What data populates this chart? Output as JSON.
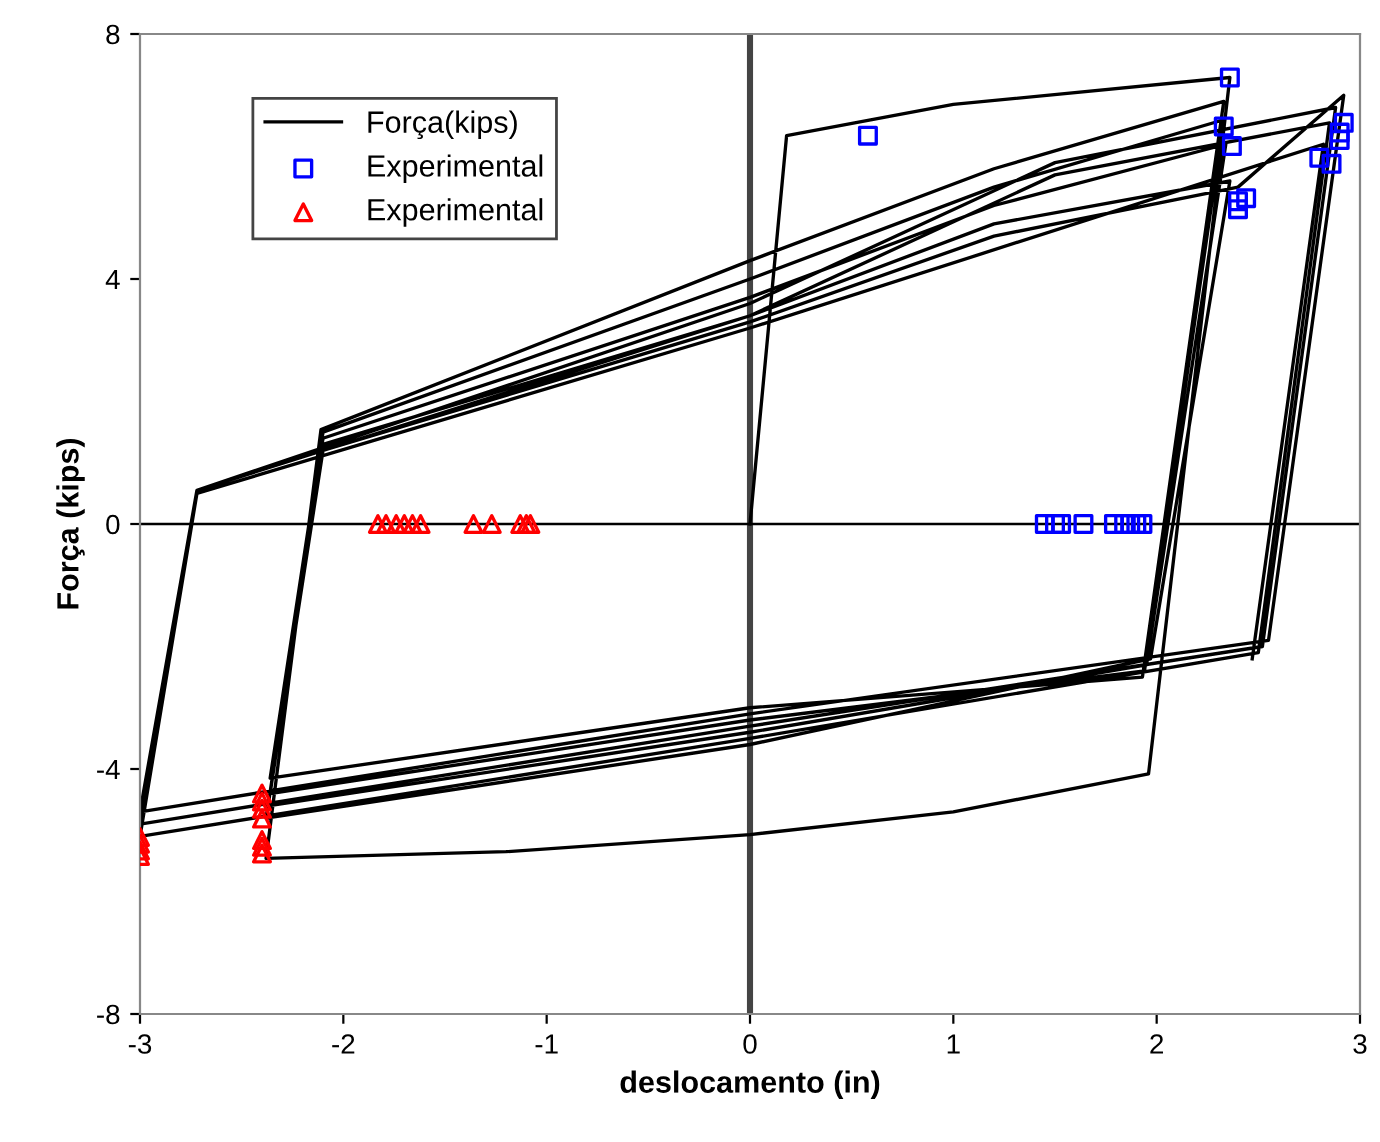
{
  "chart_data": {
    "type": "line",
    "xlabel": "deslocamento (in)",
    "ylabel": "Força (kips)",
    "xlim": [
      -3,
      3
    ],
    "ylim": [
      -8,
      8
    ],
    "xticks": [
      -3,
      -2,
      -1,
      0,
      1,
      2,
      3
    ],
    "yticks": [
      -8,
      -4,
      0,
      4,
      8
    ],
    "grid": false,
    "legend": "top left",
    "ref_lines": [
      {
        "axis": "x",
        "value": 0,
        "color": "#444444"
      },
      {
        "axis": "y",
        "value": 0,
        "color": "#000000"
      }
    ],
    "series": [
      {
        "name": "Força(kips)",
        "type": "line",
        "color": "#000000",
        "marker": "none",
        "line_style": "solid",
        "x": [
          0,
          0.18,
          1.0,
          2.36,
          1.96,
          1.0,
          0,
          -1.2,
          -2.38,
          -2.11,
          0,
          1.2,
          2.33,
          1.93,
          0,
          -2.36,
          -2.1,
          0,
          1.2,
          2.33,
          1.94,
          0,
          -2.36,
          -2.1,
          0,
          1.2,
          2.34,
          1.95,
          0,
          -2.37,
          -2.1,
          0,
          1.2,
          2.36,
          1.97,
          0,
          -2.38,
          -2.1,
          0,
          1.2,
          2.4,
          2.92,
          2.55,
          0,
          -3.0,
          -2.72,
          0,
          1.5,
          2.88,
          2.52,
          0,
          -3.0,
          -2.72,
          0,
          1.5,
          2.85,
          2.5,
          0,
          -3.0,
          -2.72,
          0,
          2.82,
          2.47
        ],
        "values": [
          0,
          6.34,
          6.85,
          7.29,
          -4.08,
          -4.7,
          -5.07,
          -5.35,
          -5.46,
          1.54,
          4.3,
          5.8,
          6.9,
          -2.5,
          -3.0,
          -4.15,
          1.5,
          4.0,
          5.5,
          6.6,
          -2.4,
          -3.2,
          -4.4,
          1.4,
          3.7,
          5.2,
          6.2,
          -2.3,
          -3.4,
          -4.6,
          1.3,
          3.4,
          4.9,
          5.6,
          -2.2,
          -3.6,
          -4.8,
          1.2,
          3.3,
          4.7,
          5.5,
          7.0,
          -1.9,
          -3.1,
          -4.7,
          0.55,
          3.6,
          5.9,
          6.8,
          -2.0,
          -3.3,
          -4.9,
          0.55,
          3.4,
          5.7,
          6.55,
          -2.1,
          -3.5,
          -5.1,
          0.5,
          3.2,
          6.2,
          -2.2
        ]
      },
      {
        "name": "Experimental",
        "type": "scatter",
        "color": "#0000ff",
        "marker": "square",
        "x": [
          0.58,
          2.36,
          2.33,
          2.37,
          2.44,
          2.4,
          2.4,
          2.92,
          2.9,
          2.9,
          2.8,
          2.86,
          1.45,
          1.5,
          1.53,
          1.64,
          1.79,
          1.84,
          1.87,
          1.9,
          1.93
        ],
        "values": [
          6.34,
          7.29,
          6.49,
          6.17,
          5.32,
          5.27,
          5.14,
          6.55,
          6.39,
          6.27,
          5.98,
          5.88,
          0,
          0,
          0,
          0,
          0,
          0,
          0,
          0,
          0
        ]
      },
      {
        "name": "Experimental",
        "type": "scatter",
        "color": "#ff0000",
        "marker": "triangle",
        "x": [
          -1.83,
          -1.79,
          -1.74,
          -1.7,
          -1.66,
          -1.62,
          -1.36,
          -1.27,
          -1.13,
          -1.1,
          -1.08,
          -2.4,
          -2.4,
          -2.4,
          -2.4,
          -2.4,
          -2.4,
          -2.4,
          -3.0,
          -3.0,
          -3.0,
          -3.0
        ],
        "values": [
          0,
          0,
          0,
          0,
          0,
          0,
          0,
          0,
          0,
          0,
          0,
          -4.4,
          -4.53,
          -4.65,
          -4.81,
          -5.16,
          -5.27,
          -5.38,
          -5.11,
          -5.22,
          -5.33,
          -5.42
        ]
      }
    ]
  }
}
